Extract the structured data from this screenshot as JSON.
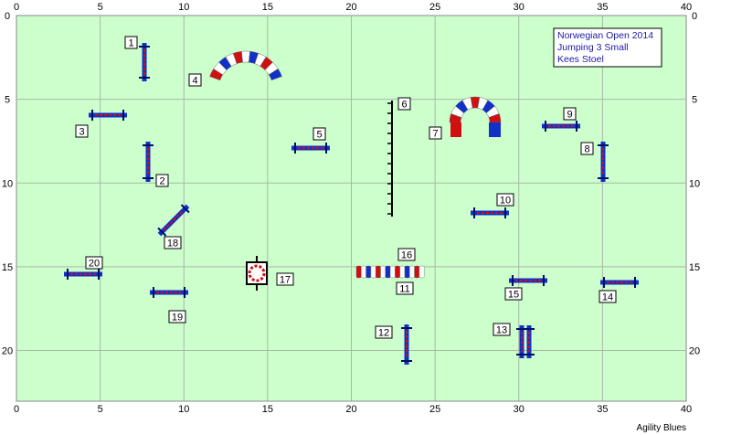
{
  "info_box": {
    "line1": "Norwegian Open 2014",
    "line2": "Jumping 3 Small",
    "line3": "Kees Stoel"
  },
  "credit": "Agility Blues",
  "axes": {
    "x_ticks": [
      "0",
      "5",
      "10",
      "15",
      "20",
      "25",
      "30",
      "35",
      "40"
    ],
    "y_ticks": [
      "0",
      "5",
      "10",
      "15",
      "20"
    ]
  },
  "colors": {
    "field": "#ccffcc",
    "grid": "#a8b8a8",
    "bar_blue": "#1030c8",
    "bar_red": "#d01010",
    "tunnel_white": "#ffffff"
  },
  "obstacles": [
    {
      "number": "1",
      "type": "jump"
    },
    {
      "number": "2",
      "type": "jump"
    },
    {
      "number": "3",
      "type": "jump"
    },
    {
      "number": "4",
      "type": "tunnel"
    },
    {
      "number": "5",
      "type": "jump"
    },
    {
      "number": "6",
      "type": "weave-poles"
    },
    {
      "number": "7",
      "type": "tunnel"
    },
    {
      "number": "8",
      "type": "jump"
    },
    {
      "number": "9",
      "type": "jump"
    },
    {
      "number": "10",
      "type": "jump"
    },
    {
      "number": "11",
      "type": "tunnel"
    },
    {
      "number": "12",
      "type": "jump"
    },
    {
      "number": "13",
      "type": "double-jump"
    },
    {
      "number": "14",
      "type": "jump"
    },
    {
      "number": "15",
      "type": "jump"
    },
    {
      "number": "16",
      "type": "tunnel"
    },
    {
      "number": "17",
      "type": "tire"
    },
    {
      "number": "18",
      "type": "jump"
    },
    {
      "number": "19",
      "type": "jump"
    },
    {
      "number": "20",
      "type": "jump"
    }
  ]
}
